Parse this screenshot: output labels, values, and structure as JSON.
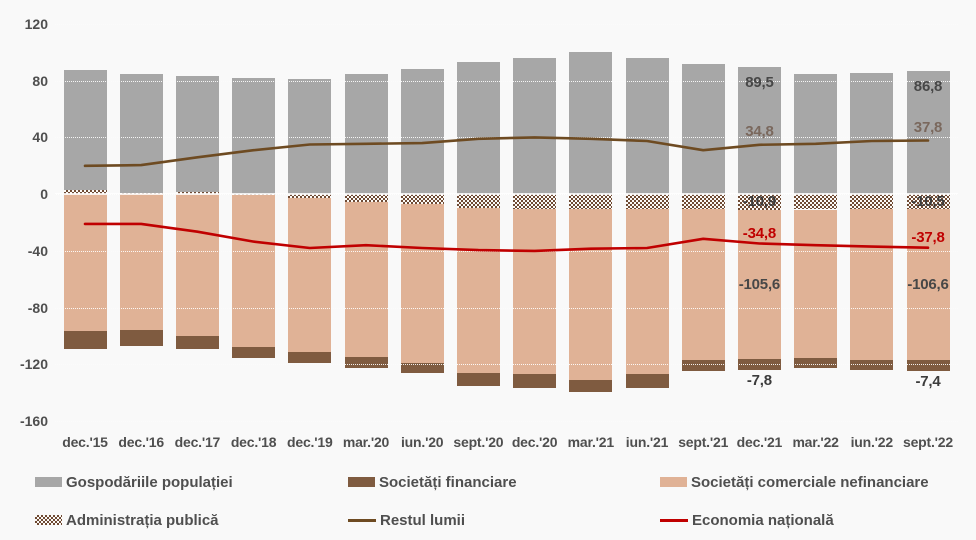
{
  "chart_data": {
    "type": "bar",
    "variant": "stacked-bars-with-lines",
    "title": "",
    "xlabel": "",
    "ylabel": "",
    "ylim": [
      -160,
      120
    ],
    "y_ticks": [
      120,
      80,
      40,
      0,
      -40,
      -80,
      -120,
      -160
    ],
    "grid": "horizontal-dotted",
    "legend_position": "bottom",
    "categories": [
      "dec.'15",
      "dec.'16",
      "dec.'17",
      "dec.'18",
      "dec.'19",
      "mar.'20",
      "iun.'20",
      "sept.'20",
      "dec.'20",
      "mar.'21",
      "iun.'21",
      "sept.'21",
      "dec.'21",
      "mar.'22",
      "iun.'22",
      "sept.'22"
    ],
    "bar_series": [
      {
        "key": "public_admin",
        "name": "Administrația publică",
        "pattern": "checker",
        "color": "#6f4a33",
        "values": [
          3,
          1,
          1.5,
          -0.5,
          -3,
          -5.5,
          -7,
          -9.5,
          -10.5,
          -10.5,
          -10.5,
          -10.5,
          -10.9,
          -10.8,
          -10.6,
          -10.5
        ]
      },
      {
        "key": "nonfinancial",
        "name": "Societăți comerciale nefinanciare",
        "color": "#e0b296",
        "values": [
          -96.5,
          -96,
          -100,
          -107,
          -108.5,
          -109.5,
          -112,
          -116.5,
          -116.5,
          -120.5,
          -116.5,
          -106.5,
          -105.6,
          -105,
          -106.5,
          -106.6
        ]
      },
      {
        "key": "financial",
        "name": "Societăți financiare",
        "color": "#7f5b40",
        "values": [
          -13,
          -11,
          -9.5,
          -8,
          -7.5,
          -8,
          -7.5,
          -9.5,
          -10,
          -8.5,
          -9.5,
          -7.5,
          -7.8,
          -7,
          -7,
          -7.4
        ]
      },
      {
        "key": "households",
        "name": "Gospodăriile populației",
        "color": "#a7a7a7",
        "values": [
          84.5,
          84,
          82,
          82,
          81,
          84.5,
          88,
          93,
          96,
          100,
          96,
          92,
          89.5,
          85,
          85.5,
          86.8
        ]
      }
    ],
    "line_series": [
      {
        "key": "rest_of_world",
        "name": "Restul lumii",
        "color": "#6e4b22",
        "values": [
          20,
          20.5,
          26,
          31,
          35,
          35.5,
          36,
          39,
          40,
          39,
          37.5,
          31,
          34.8,
          35.5,
          37.5,
          37.8
        ]
      },
      {
        "key": "national_economy",
        "name": "Economia națională",
        "color": "#c00000",
        "values": [
          -21,
          -21,
          -26.5,
          -33.5,
          -38,
          -36,
          -38,
          -39.5,
          -40,
          -38.5,
          -38,
          -31.5,
          -34.8,
          -36,
          -37,
          -37.8
        ]
      }
    ],
    "annotated_categories": [
      {
        "category": "dec.'21",
        "index": 12,
        "labels": {
          "households": "89,5",
          "rest_of_world": "34,8",
          "public_admin": "-10,9",
          "national_economy": "-34,8",
          "nonfinancial": "-105,6",
          "financial": "-7,8"
        }
      },
      {
        "category": "sept.'22",
        "index": 15,
        "labels": {
          "households": "86,8",
          "rest_of_world": "37,8",
          "public_admin": "-10,5",
          "national_economy": "-37,8",
          "nonfinancial": "-106,6",
          "financial": "-7,4"
        }
      }
    ]
  },
  "label_colors": {
    "households": "#474747",
    "rest_of_world": "#7a685d",
    "public_admin": "#3c3c3c",
    "national_economy": "#c00000",
    "nonfinancial": "#474747",
    "financial": "#3c3c3c"
  },
  "legend": {
    "rows": [
      [
        {
          "key": "households",
          "swatch": "box",
          "color": "#a7a7a7",
          "label": "Gospodăriile populației"
        },
        {
          "key": "financial",
          "swatch": "box",
          "color": "#7f5b40",
          "label": "Societăți financiare"
        },
        {
          "key": "nonfinancial",
          "swatch": "box",
          "color": "#e0b296",
          "label": "Societăți comerciale nefinanciare"
        }
      ],
      [
        {
          "key": "public_admin",
          "swatch": "checker",
          "color": "#6f4a33",
          "label": "Administrația publică"
        },
        {
          "key": "rest_of_world",
          "swatch": "line",
          "color": "#6e4b22",
          "label": "Restul lumii"
        },
        {
          "key": "national_economy",
          "swatch": "line",
          "color": "#c00000",
          "label": "Economia națională"
        }
      ]
    ]
  },
  "colors": {
    "background": "#f9f9f9",
    "gridline": "#d7d5d2",
    "tick_text": "#4f4f4f"
  }
}
